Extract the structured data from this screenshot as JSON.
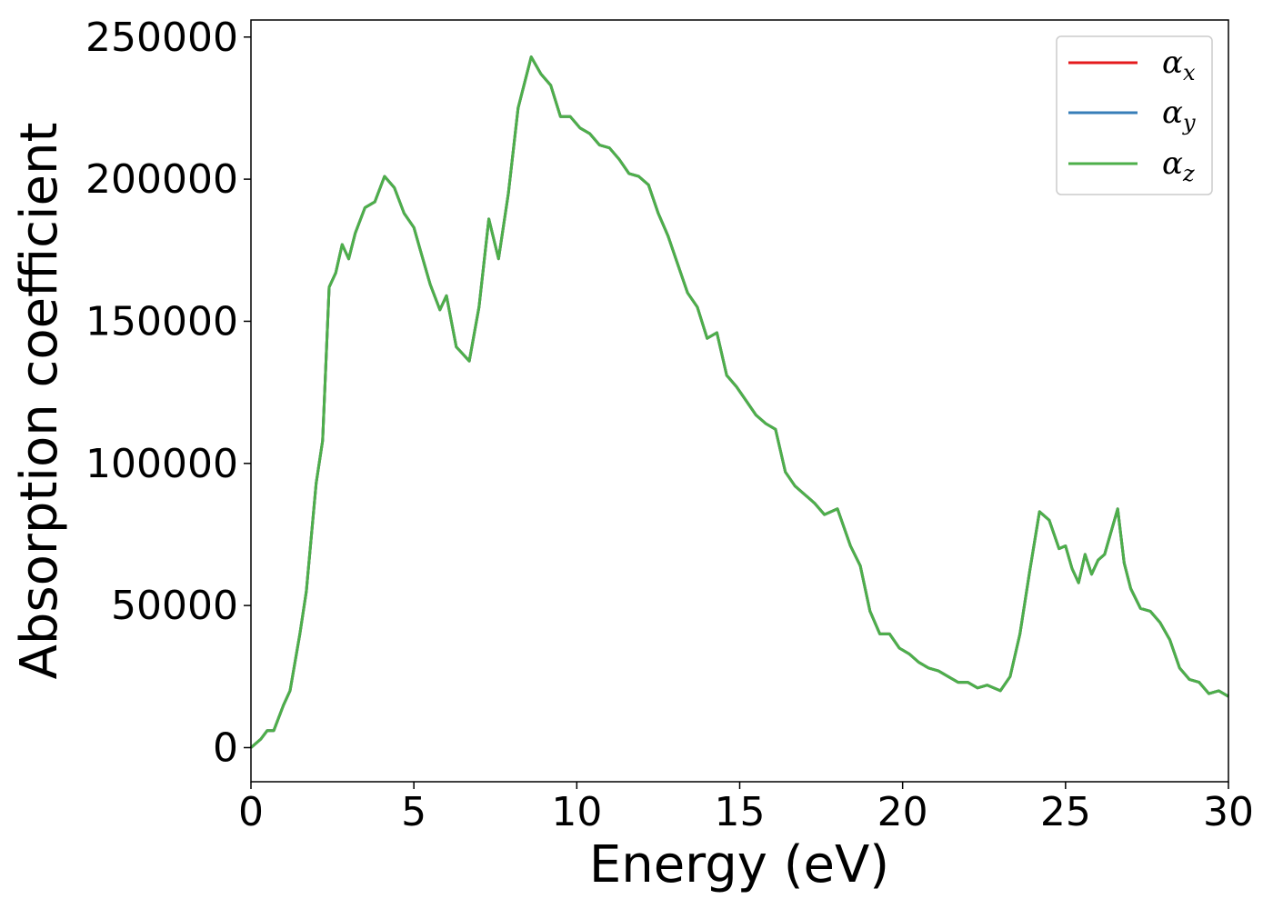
{
  "chart_data": {
    "type": "line",
    "xlabel": "Energy (eV)",
    "ylabel": "Absorption coefficient",
    "xlim": [
      0,
      30
    ],
    "ylim": [
      -12000,
      256000
    ],
    "xticks": [
      0,
      5,
      10,
      15,
      20,
      25,
      30
    ],
    "xtick_labels": [
      "0",
      "5",
      "10",
      "15",
      "20",
      "25",
      "30"
    ],
    "yticks": [
      0,
      50000,
      100000,
      150000,
      200000,
      250000
    ],
    "ytick_labels": [
      "0",
      "50000",
      "100000",
      "150000",
      "200000",
      "250000"
    ],
    "grid": false,
    "legend_position": "top-right",
    "x": [
      0,
      0.3,
      0.5,
      0.7,
      1.0,
      1.2,
      1.5,
      1.7,
      2.0,
      2.2,
      2.4,
      2.6,
      2.8,
      3.0,
      3.2,
      3.5,
      3.8,
      4.1,
      4.4,
      4.7,
      5.0,
      5.2,
      5.5,
      5.8,
      6.0,
      6.3,
      6.7,
      7.0,
      7.3,
      7.6,
      7.9,
      8.2,
      8.6,
      8.9,
      9.2,
      9.5,
      9.8,
      10.1,
      10.4,
      10.7,
      11.0,
      11.3,
      11.6,
      11.9,
      12.2,
      12.5,
      12.8,
      13.1,
      13.4,
      13.7,
      14.0,
      14.3,
      14.6,
      14.9,
      15.2,
      15.5,
      15.8,
      16.1,
      16.4,
      16.7,
      17.0,
      17.3,
      17.6,
      18.0,
      18.4,
      18.7,
      19.0,
      19.3,
      19.6,
      19.9,
      20.2,
      20.5,
      20.8,
      21.1,
      21.4,
      21.7,
      22.0,
      22.3,
      22.6,
      23.0,
      23.3,
      23.6,
      23.9,
      24.2,
      24.5,
      24.8,
      25.0,
      25.2,
      25.4,
      25.6,
      25.8,
      26.0,
      26.2,
      26.4,
      26.6,
      26.8,
      27.0,
      27.3,
      27.6,
      27.9,
      28.2,
      28.5,
      28.8,
      29.1,
      29.4,
      29.7,
      30.0
    ],
    "series": [
      {
        "name": "α_x",
        "color": "#e41a1c",
        "values": [
          0,
          3000,
          6000,
          6000,
          15000,
          20000,
          40000,
          55000,
          93000,
          108000,
          162000,
          167000,
          177000,
          172000,
          181000,
          190000,
          192000,
          201000,
          197000,
          188000,
          183000,
          175000,
          163000,
          154000,
          159000,
          141000,
          136000,
          155000,
          186000,
          172000,
          195000,
          225000,
          243000,
          237000,
          233000,
          222000,
          222000,
          218000,
          216000,
          212000,
          211000,
          207000,
          202000,
          201000,
          198000,
          188000,
          180000,
          170000,
          160000,
          155000,
          144000,
          146000,
          131000,
          127000,
          122000,
          117000,
          114000,
          112000,
          97000,
          92000,
          89000,
          86000,
          82000,
          84000,
          71000,
          64000,
          48000,
          40000,
          40000,
          35000,
          33000,
          30000,
          28000,
          27000,
          25000,
          23000,
          23000,
          21000,
          22000,
          20000,
          25000,
          40000,
          62000,
          83000,
          80000,
          70000,
          71000,
          63000,
          58000,
          68000,
          61000,
          66000,
          68000,
          76000,
          84000,
          65000,
          56000,
          49000,
          48000,
          44000,
          38000,
          28000,
          24000,
          23000,
          19000,
          20000,
          18000
        ]
      },
      {
        "name": "α_y",
        "color": "#377eb8",
        "values": [
          0,
          3000,
          6000,
          6000,
          15000,
          20000,
          40000,
          55000,
          93000,
          108000,
          162000,
          167000,
          177000,
          172000,
          181000,
          190000,
          192000,
          201000,
          197000,
          188000,
          183000,
          175000,
          163000,
          154000,
          159000,
          141000,
          136000,
          155000,
          186000,
          172000,
          195000,
          225000,
          243000,
          237000,
          233000,
          222000,
          222000,
          218000,
          216000,
          212000,
          211000,
          207000,
          202000,
          201000,
          198000,
          188000,
          180000,
          170000,
          160000,
          155000,
          144000,
          146000,
          131000,
          127000,
          122000,
          117000,
          114000,
          112000,
          97000,
          92000,
          89000,
          86000,
          82000,
          84000,
          71000,
          64000,
          48000,
          40000,
          40000,
          35000,
          33000,
          30000,
          28000,
          27000,
          25000,
          23000,
          23000,
          21000,
          22000,
          20000,
          25000,
          40000,
          62000,
          83000,
          80000,
          70000,
          71000,
          63000,
          58000,
          68000,
          61000,
          66000,
          68000,
          76000,
          84000,
          65000,
          56000,
          49000,
          48000,
          44000,
          38000,
          28000,
          24000,
          23000,
          19000,
          20000,
          18000
        ]
      },
      {
        "name": "α_z",
        "color": "#4daf4a",
        "values": [
          0,
          3000,
          6000,
          6000,
          15000,
          20000,
          40000,
          55000,
          93000,
          108000,
          162000,
          167000,
          177000,
          172000,
          181000,
          190000,
          192000,
          201000,
          197000,
          188000,
          183000,
          175000,
          163000,
          154000,
          159000,
          141000,
          136000,
          155000,
          186000,
          172000,
          195000,
          225000,
          243000,
          237000,
          233000,
          222000,
          222000,
          218000,
          216000,
          212000,
          211000,
          207000,
          202000,
          201000,
          198000,
          188000,
          180000,
          170000,
          160000,
          155000,
          144000,
          146000,
          131000,
          127000,
          122000,
          117000,
          114000,
          112000,
          97000,
          92000,
          89000,
          86000,
          82000,
          84000,
          71000,
          64000,
          48000,
          40000,
          40000,
          35000,
          33000,
          30000,
          28000,
          27000,
          25000,
          23000,
          23000,
          21000,
          22000,
          20000,
          25000,
          40000,
          62000,
          83000,
          80000,
          70000,
          71000,
          63000,
          58000,
          68000,
          61000,
          66000,
          68000,
          76000,
          84000,
          65000,
          56000,
          49000,
          48000,
          44000,
          38000,
          28000,
          24000,
          23000,
          19000,
          20000,
          18000
        ]
      }
    ],
    "legend": [
      {
        "base": "α",
        "sub": "x"
      },
      {
        "base": "α",
        "sub": "y"
      },
      {
        "base": "α",
        "sub": "z"
      }
    ]
  }
}
